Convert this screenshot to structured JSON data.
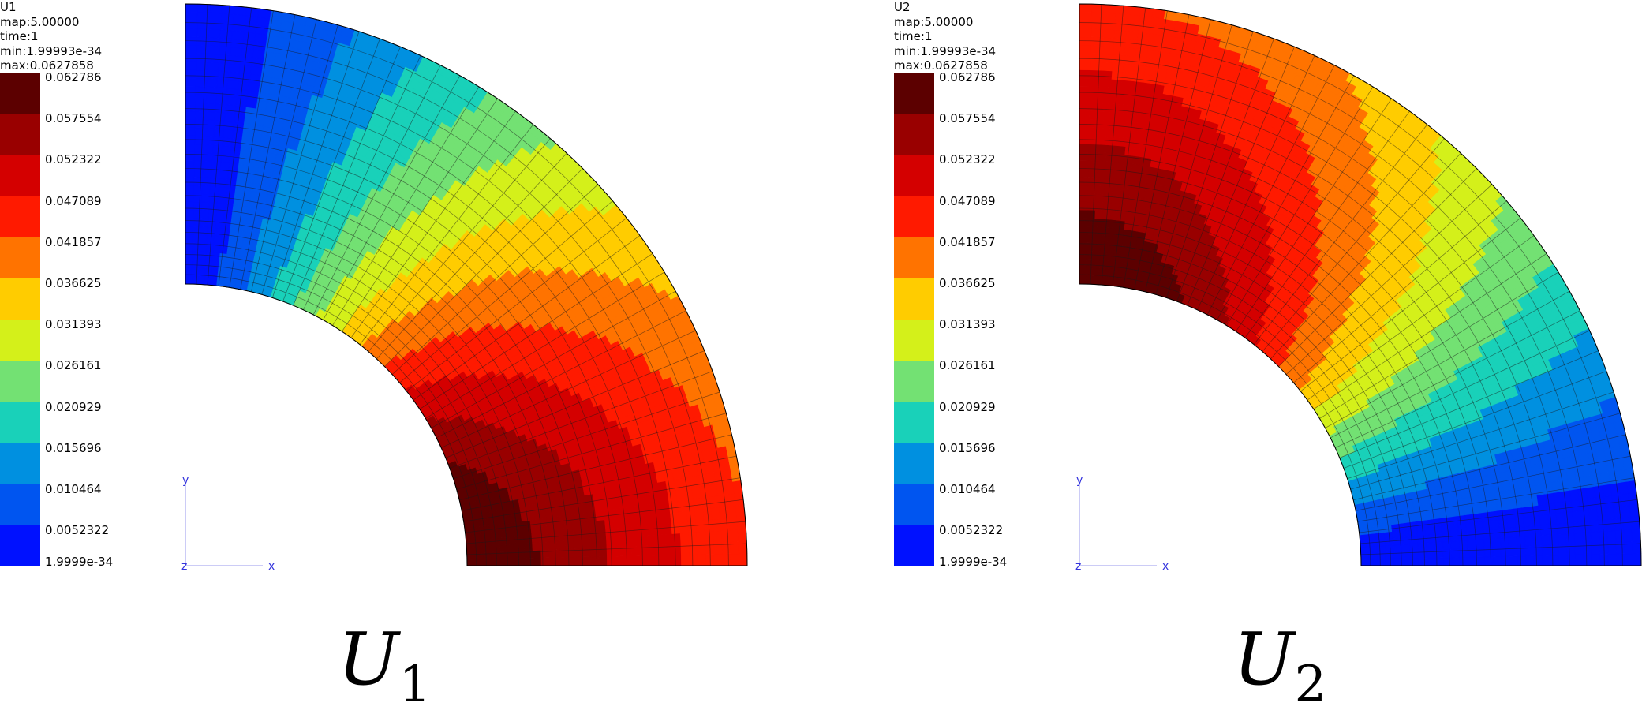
{
  "panels": [
    {
      "id": "u1",
      "info": {
        "field": "U1",
        "map": "map:5.00000",
        "time": "time:1",
        "min": "min:1.99993e-34",
        "max": "max:0.0627858"
      },
      "legend_ticks": [
        "0.062786",
        "0.057554",
        "0.052322",
        "0.047089",
        "0.041857",
        "0.036625",
        "0.031393",
        "0.026161",
        "0.020929",
        "0.015696",
        "0.010464",
        "0.0052322",
        "1.9999e-34"
      ],
      "axes": {
        "y": "y",
        "z": "z",
        "x": "x"
      },
      "caption": {
        "symbol": "U",
        "sub": "1"
      }
    },
    {
      "id": "u2",
      "info": {
        "field": "U2",
        "map": "map:5.00000",
        "time": "time:1",
        "min": "min:1.99993e-34",
        "max": "max:0.0627858"
      },
      "legend_ticks": [
        "0.062786",
        "0.057554",
        "0.052322",
        "0.047089",
        "0.041857",
        "0.036625",
        "0.031393",
        "0.026161",
        "0.020929",
        "0.015696",
        "0.010464",
        "0.0052322",
        "1.9999e-34"
      ],
      "axes": {
        "y": "y",
        "z": "z",
        "x": "x"
      },
      "caption": {
        "symbol": "U",
        "sub": "2"
      }
    }
  ],
  "colormap": [
    "#5c0000",
    "#990000",
    "#d40000",
    "#ff1a00",
    "#ff7300",
    "#ffcc00",
    "#d4f01a",
    "#73e173",
    "#19d1b9",
    "#0090e0",
    "#0055f0",
    "#0011ff"
  ]
}
